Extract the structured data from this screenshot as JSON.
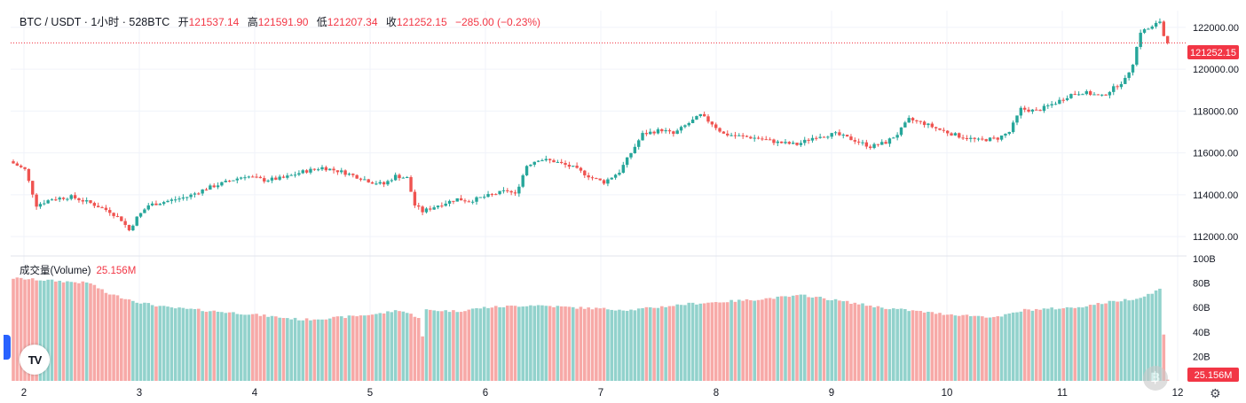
{
  "legend": {
    "symbol": "BTC / USDT · 1小时 · 528BTC",
    "open_label": "开",
    "open": "121537.14",
    "high_label": "高",
    "high": "121591.90",
    "low_label": "低",
    "low": "121207.34",
    "close_label": "收",
    "close": "121252.15",
    "change": "−285.00 (−0.23%)"
  },
  "volume_legend": {
    "label": "成交量(Volume)",
    "value": "25.156M"
  },
  "price_badge": "121252.15",
  "volume_badge": "25.156M",
  "colors": {
    "up": "#26a69a",
    "down": "#ef5350",
    "up_vol": "#92d2cc",
    "down_vol": "#f7a9a7",
    "grid": "#f0f3fa",
    "axis_text": "#131722"
  },
  "chart_data": {
    "type": "candlestick",
    "x_ticks": [
      "2",
      "3",
      "4",
      "5",
      "6",
      "7",
      "8",
      "9",
      "10",
      "11",
      "12"
    ],
    "y_ticks": [
      "122000.00",
      "120000.00",
      "118000.00",
      "116000.00",
      "114000.00",
      "112000.00"
    ],
    "y_range": [
      111200,
      122800
    ],
    "volume_ticks": [
      "100B",
      "80B",
      "60B",
      "40B",
      "20B"
    ],
    "volume_range": [
      0,
      100
    ],
    "last_price": 121252.15,
    "anchors_close": [
      [
        0,
        115500
      ],
      [
        3,
        115200
      ],
      [
        6,
        113500
      ],
      [
        10,
        113800
      ],
      [
        15,
        113900
      ],
      [
        20,
        113600
      ],
      [
        25,
        113200
      ],
      [
        28,
        112800
      ],
      [
        30,
        112300
      ],
      [
        32,
        112900
      ],
      [
        35,
        113500
      ],
      [
        40,
        113700
      ],
      [
        45,
        113900
      ],
      [
        50,
        114300
      ],
      [
        55,
        114600
      ],
      [
        60,
        114900
      ],
      [
        65,
        114700
      ],
      [
        70,
        114800
      ],
      [
        75,
        115100
      ],
      [
        80,
        115300
      ],
      [
        85,
        115100
      ],
      [
        90,
        114800
      ],
      [
        93,
        114600
      ],
      [
        96,
        114500
      ],
      [
        99,
        114900
      ],
      [
        102,
        114800
      ],
      [
        104,
        113500
      ],
      [
        106,
        113200
      ],
      [
        110,
        113500
      ],
      [
        115,
        113800
      ],
      [
        118,
        113700
      ],
      [
        122,
        113900
      ],
      [
        128,
        114200
      ],
      [
        130,
        114000
      ],
      [
        133,
        115400
      ],
      [
        136,
        115700
      ],
      [
        140,
        115600
      ],
      [
        145,
        115300
      ],
      [
        150,
        114800
      ],
      [
        153,
        114600
      ],
      [
        157,
        115100
      ],
      [
        160,
        116000
      ],
      [
        163,
        116900
      ],
      [
        168,
        117100
      ],
      [
        171,
        116900
      ],
      [
        174,
        117300
      ],
      [
        178,
        117800
      ],
      [
        181,
        117400
      ],
      [
        184,
        116900
      ],
      [
        188,
        116800
      ],
      [
        193,
        116700
      ],
      [
        198,
        116500
      ],
      [
        203,
        116400
      ],
      [
        208,
        116800
      ],
      [
        213,
        116900
      ],
      [
        218,
        116600
      ],
      [
        222,
        116300
      ],
      [
        226,
        116500
      ],
      [
        229,
        116900
      ],
      [
        232,
        117600
      ],
      [
        236,
        117400
      ],
      [
        240,
        117100
      ],
      [
        245,
        116800
      ],
      [
        250,
        116600
      ],
      [
        255,
        116700
      ],
      [
        258,
        117000
      ],
      [
        261,
        118100
      ],
      [
        265,
        118000
      ],
      [
        270,
        118400
      ],
      [
        274,
        118800
      ],
      [
        277,
        118900
      ],
      [
        282,
        118700
      ],
      [
        285,
        119100
      ],
      [
        288,
        119500
      ],
      [
        290,
        120300
      ],
      [
        292,
        121800
      ],
      [
        295,
        122000
      ],
      [
        297,
        122300
      ],
      [
        298,
        121600
      ],
      [
        299,
        121252
      ]
    ],
    "anchors_volume": [
      [
        0,
        84
      ],
      [
        20,
        80
      ],
      [
        24,
        72
      ],
      [
        33,
        64
      ],
      [
        40,
        60
      ],
      [
        48,
        58
      ],
      [
        60,
        55
      ],
      [
        75,
        50
      ],
      [
        85,
        52
      ],
      [
        95,
        55
      ],
      [
        100,
        58
      ],
      [
        105,
        52
      ],
      [
        106,
        36
      ],
      [
        107,
        58
      ],
      [
        115,
        57
      ],
      [
        122,
        60
      ],
      [
        135,
        62
      ],
      [
        145,
        60
      ],
      [
        160,
        58
      ],
      [
        175,
        63
      ],
      [
        190,
        66
      ],
      [
        205,
        70
      ],
      [
        215,
        65
      ],
      [
        225,
        60
      ],
      [
        240,
        55
      ],
      [
        255,
        52
      ],
      [
        262,
        58
      ],
      [
        275,
        60
      ],
      [
        285,
        65
      ],
      [
        292,
        68
      ],
      [
        297,
        75
      ],
      [
        299,
        1
      ]
    ]
  }
}
